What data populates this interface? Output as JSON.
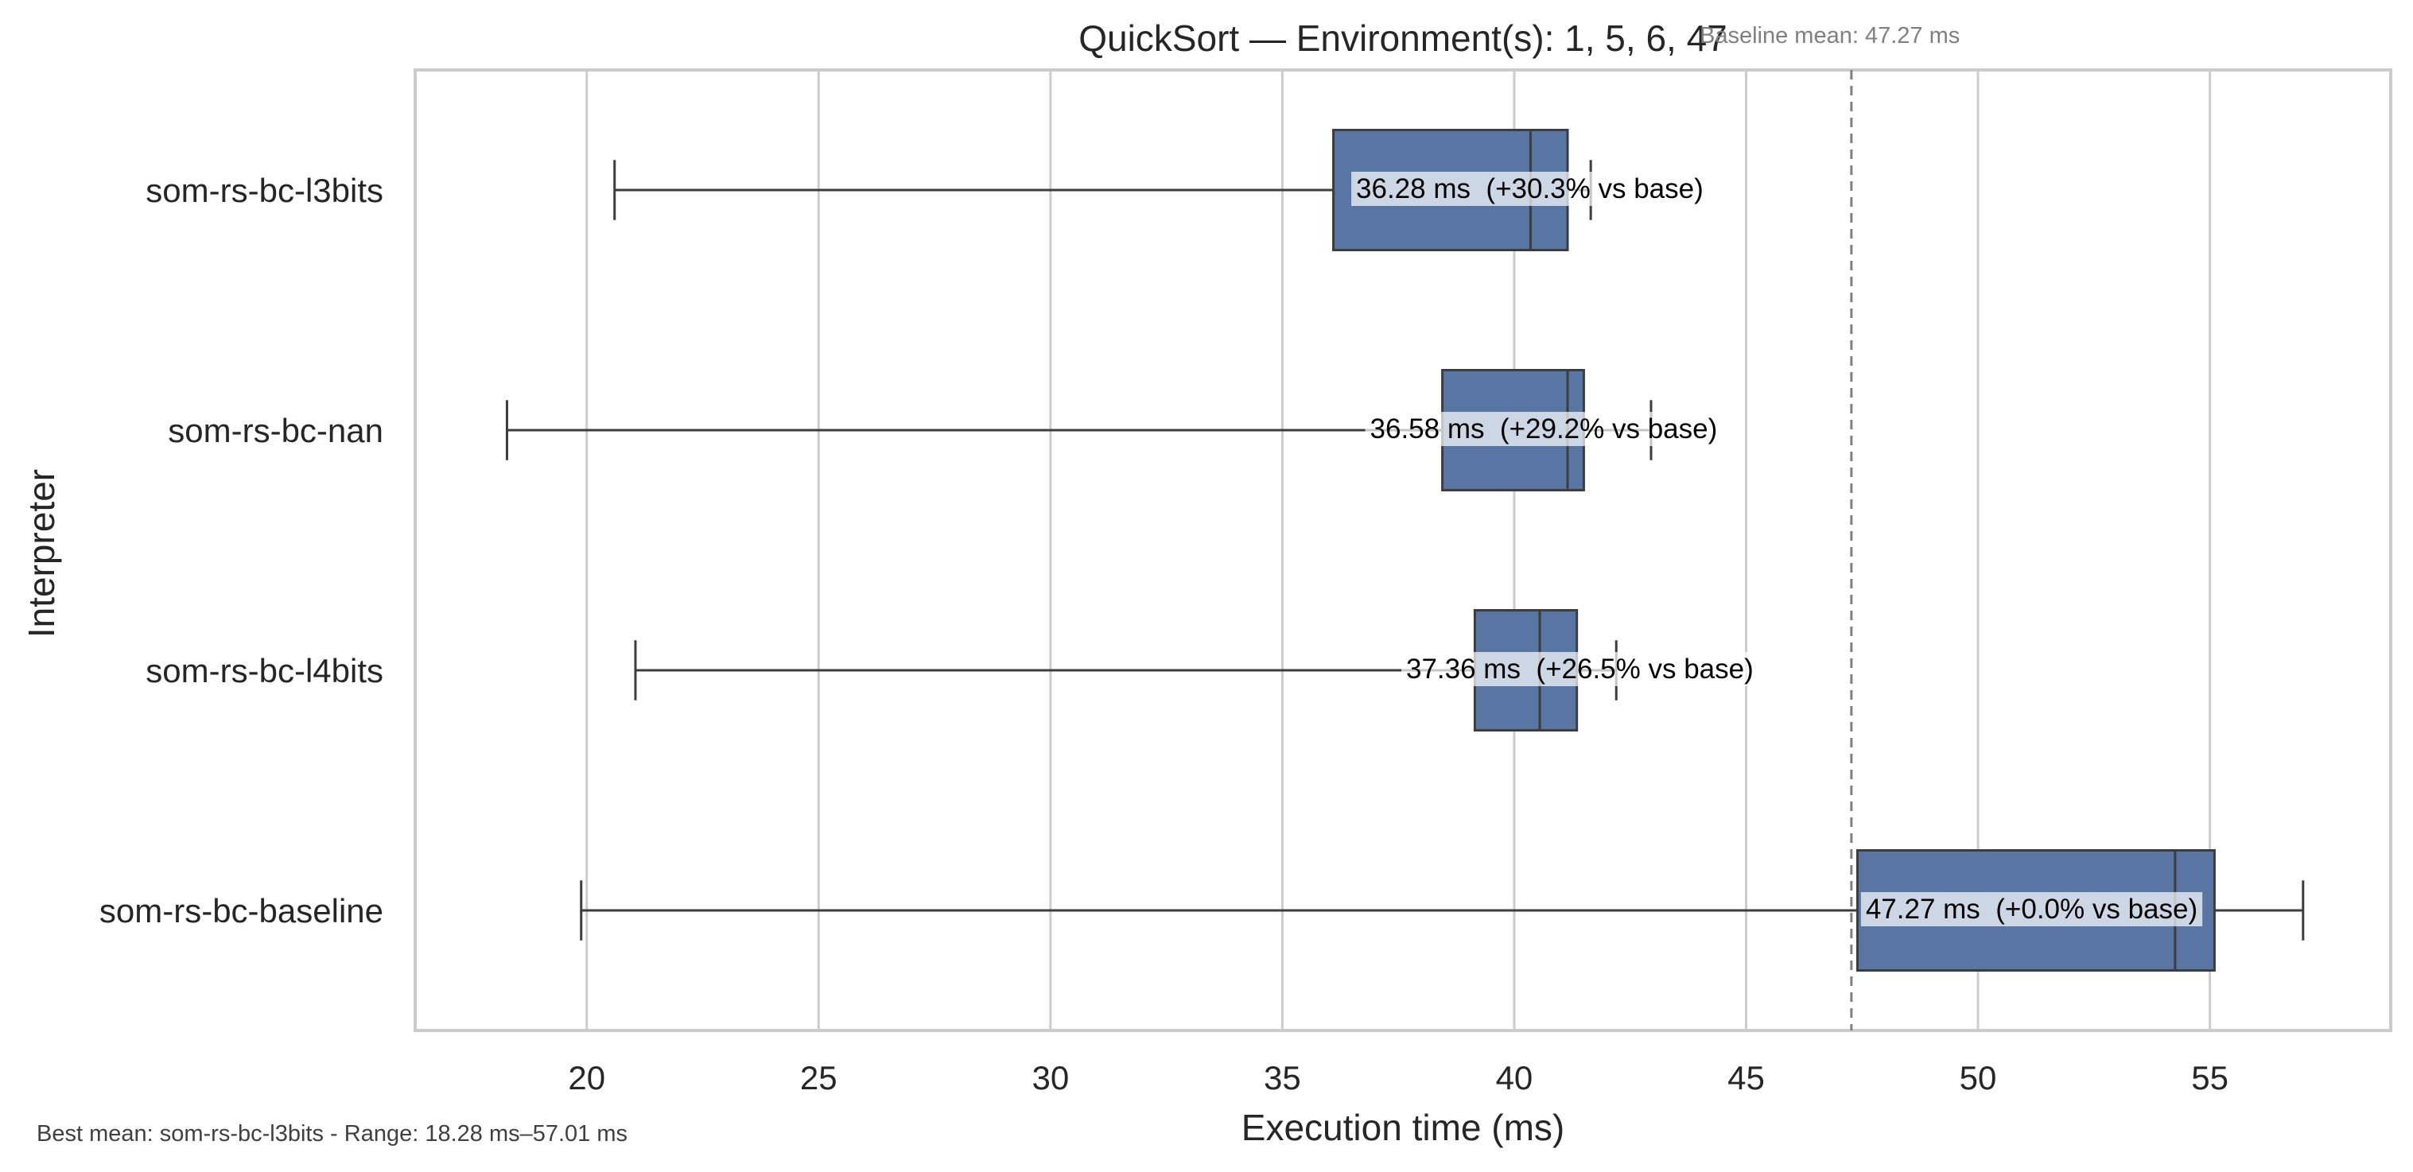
{
  "chart_data": {
    "type": "box",
    "orientation": "horizontal",
    "title": "QuickSort — Environment(s): 1, 5, 6, 47",
    "xlabel": "Execution time (ms)",
    "ylabel": "Interpreter",
    "xlim": [
      16.3,
      58.9
    ],
    "xticks": [
      20,
      25,
      30,
      35,
      40,
      45,
      50,
      55
    ],
    "grid": "vertical",
    "box_color": "#5875a4",
    "baseline": {
      "value": 47.27,
      "label": "Baseline mean: 47.27 ms"
    },
    "series": [
      {
        "name": "som-rs-bc-l3bits",
        "whisker_low": 20.6,
        "q1": 36.1,
        "median": 40.35,
        "q3": 41.15,
        "whisker_high": 41.65,
        "mean": 36.28,
        "annotation": "36.28 ms  (+30.3% vs base)"
      },
      {
        "name": "som-rs-bc-nan",
        "whisker_low": 18.28,
        "q1": 38.45,
        "median": 41.15,
        "q3": 41.5,
        "whisker_high": 42.95,
        "mean": 36.58,
        "annotation": "36.58 ms  (+29.2% vs base)"
      },
      {
        "name": "som-rs-bc-l4bits",
        "whisker_low": 21.05,
        "q1": 39.15,
        "median": 40.55,
        "q3": 41.35,
        "whisker_high": 42.2,
        "mean": 37.36,
        "annotation": "37.36 ms  (+26.5% vs base)"
      },
      {
        "name": "som-rs-bc-baseline",
        "whisker_low": 19.88,
        "q1": 47.4,
        "median": 54.25,
        "q3": 55.1,
        "whisker_high": 57.01,
        "mean": 47.27,
        "annotation": "47.27 ms  (+0.0% vs base)"
      }
    ],
    "footer": "Best mean: som-rs-bc-l3bits - Range: 18.28 ms–57.01 ms"
  }
}
